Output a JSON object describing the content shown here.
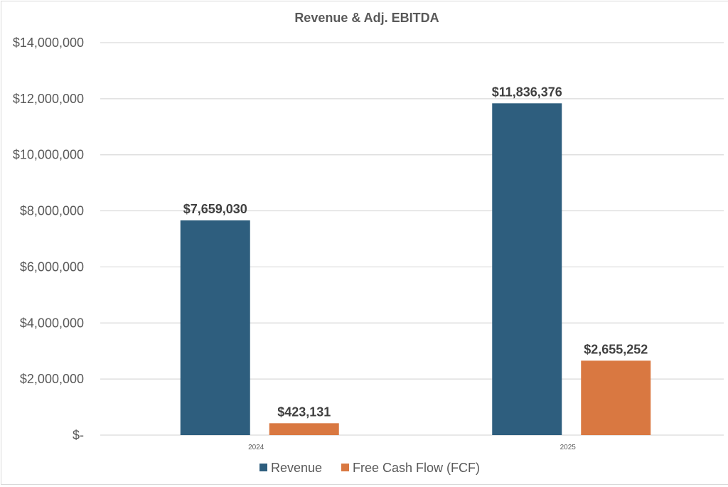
{
  "chart_data": {
    "type": "bar",
    "title": "Revenue & Adj. EBITDA",
    "xlabel": "",
    "ylabel": "",
    "categories": [
      "2024",
      "2025"
    ],
    "series": [
      {
        "name": "Revenue",
        "color": "#2E5E7E",
        "values": [
          7659030,
          11836376
        ],
        "labels": [
          "$7,659,030",
          "$11,836,376"
        ]
      },
      {
        "name": "Free Cash Flow (FCF)",
        "color": "#D97841",
        "values": [
          423131,
          2655252
        ],
        "labels": [
          "$423,131",
          "$2,655,252"
        ]
      }
    ],
    "ylim": [
      0,
      14000000
    ],
    "yticks": [
      0,
      2000000,
      4000000,
      6000000,
      8000000,
      10000000,
      12000000,
      14000000
    ],
    "ytick_labels": [
      "$-",
      "$2,000,000",
      "$4,000,000",
      "$6,000,000",
      "$8,000,000",
      "$10,000,000",
      "$12,000,000",
      "$14,000,000"
    ],
    "grid": true,
    "legend": "bottom"
  }
}
